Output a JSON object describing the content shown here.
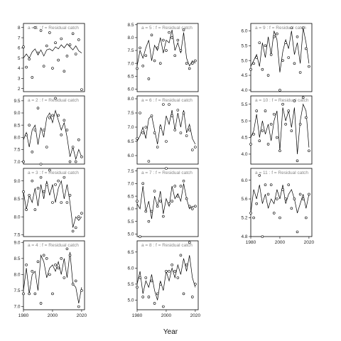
{
  "chart_data": {
    "type": "line",
    "xlabel": "Year",
    "panels": [
      {
        "strip": "a = 1  :  f = Residual catch",
        "xlim": [
          1980,
          2022
        ],
        "ylim": [
          1.7,
          8.4
        ],
        "yticks": [
          2,
          3,
          4,
          5,
          6,
          7,
          8
        ],
        "ytick_labels": [
          "2",
          "3",
          "4",
          "5",
          "6",
          "7",
          "8"
        ],
        "x": [
          1980,
          1982,
          1984,
          1986,
          1988,
          1990,
          1992,
          1994,
          1996,
          1998,
          2000,
          2002,
          2004,
          2006,
          2008,
          2010,
          2012,
          2014,
          2016,
          2018,
          2020
        ],
        "fitted": [
          5.0,
          5.4,
          5.0,
          5.6,
          5.9,
          5.3,
          5.8,
          5.2,
          5.8,
          5.9,
          5.7,
          6.1,
          5.9,
          6.3,
          6.0,
          6.4,
          6.1,
          5.8,
          6.2,
          5.7,
          5.5
        ],
        "observed": [
          6.1,
          4.1,
          4.9,
          3.1,
          8.0,
          5.5,
          7.7,
          4.2,
          6.2,
          7.5,
          4.0,
          6.5,
          4.8,
          6.9,
          3.7,
          5.2,
          6.3,
          7.4,
          5.4,
          6.8,
          1.9
        ]
      },
      {
        "strip": "a = 2  :  f = Residual catch",
        "xlim": [
          1980,
          2022
        ],
        "ylim": [
          6.9,
          9.7
        ],
        "yticks": [
          7.0,
          7.5,
          8.0,
          8.5,
          9.0,
          9.5
        ],
        "ytick_labels": [
          "7.0",
          "7.5",
          "8.0",
          "8.5",
          "9.0",
          "9.5"
        ],
        "x": [
          1980,
          1982,
          1984,
          1986,
          1988,
          1990,
          1992,
          1994,
          1996,
          1998,
          2000,
          2002,
          2004,
          2006,
          2008,
          2010,
          2012,
          2014,
          2016,
          2018,
          2020
        ],
        "fitted": [
          7.9,
          8.2,
          7.6,
          8.3,
          8.5,
          7.7,
          8.4,
          8.0,
          8.8,
          9.0,
          8.6,
          9.1,
          8.7,
          8.3,
          8.6,
          8.0,
          7.2,
          7.6,
          7.1,
          7.5,
          7.2
        ],
        "observed": [
          7.0,
          8.1,
          8.5,
          7.4,
          8.3,
          9.2,
          6.9,
          8.3,
          7.6,
          8.8,
          8.9,
          9.6,
          8.9,
          8.1,
          8.7,
          8.3,
          7.0,
          7.6,
          7.0,
          7.9,
          7.2
        ]
      },
      {
        "strip": "a = 3  :  f = Residual catch",
        "xlim": [
          1980,
          2022
        ],
        "ylim": [
          7.45,
          9.35
        ],
        "yticks": [
          7.5,
          8.0,
          8.5,
          9.0
        ],
        "ytick_labels": [
          "7.5",
          "8.0",
          "8.5",
          "9.0"
        ],
        "x": [
          1980,
          1982,
          1984,
          1986,
          1988,
          1990,
          1992,
          1994,
          1996,
          1998,
          2000,
          2002,
          2004,
          2006,
          2008,
          2010,
          2012,
          2014,
          2016,
          2018,
          2020
        ],
        "fitted": [
          8.7,
          8.2,
          8.6,
          8.4,
          8.8,
          8.3,
          8.9,
          8.5,
          9.0,
          8.6,
          8.9,
          8.4,
          8.8,
          9.0,
          8.5,
          8.9,
          8.4,
          7.7,
          8.0,
          7.9,
          8.0
        ],
        "observed": [
          8.7,
          8.2,
          8.6,
          9.0,
          8.2,
          8.8,
          9.1,
          8.7,
          8.9,
          9.3,
          8.4,
          8.9,
          9.0,
          8.4,
          9.1,
          8.4,
          8.6,
          7.6,
          7.7,
          8.0,
          8.1
        ]
      },
      {
        "strip": "a = 4  :  f = Residual catch",
        "xlim": [
          1980,
          2022
        ],
        "ylim": [
          6.9,
          9.05
        ],
        "yticks": [
          7.0,
          7.5,
          8.0,
          8.5,
          9.0
        ],
        "ytick_labels": [
          "7.0",
          "7.5",
          "8.0",
          "8.5",
          "9.0"
        ],
        "x": [
          1980,
          1982,
          1984,
          1986,
          1988,
          1990,
          1992,
          1994,
          1996,
          1998,
          2000,
          2002,
          2004,
          2006,
          2008,
          2010,
          2012,
          2014,
          2016,
          2018,
          2020
        ],
        "fitted": [
          7.5,
          8.2,
          7.4,
          8.0,
          8.1,
          7.5,
          8.6,
          8.4,
          7.9,
          8.2,
          8.3,
          8.1,
          8.4,
          8.0,
          8.5,
          7.9,
          8.7,
          7.7,
          7.6,
          7.1,
          7.6
        ],
        "observed": [
          7.4,
          8.3,
          7.4,
          8.1,
          7.4,
          8.4,
          7.1,
          8.6,
          8.5,
          8.0,
          7.4,
          8.3,
          8.2,
          8.5,
          7.9,
          8.8,
          8.6,
          7.7,
          7.8,
          7.0,
          7.5
        ]
      },
      {
        "strip": "a = 5  :  f = Residual catch",
        "xlim": [
          1980,
          2022
        ],
        "ylim": [
          5.9,
          8.55
        ],
        "yticks": [
          6.0,
          6.5,
          7.0,
          7.5,
          8.0,
          8.5
        ],
        "ytick_labels": [
          "6.0",
          "6.5",
          "7.0",
          "7.5",
          "8.0",
          "8.5"
        ],
        "x": [
          1980,
          1982,
          1984,
          1986,
          1988,
          1990,
          1992,
          1994,
          1996,
          1998,
          2000,
          2002,
          2004,
          2006,
          2008,
          2010,
          2012,
          2014,
          2016,
          2018,
          2020
        ],
        "fitted": [
          6.9,
          7.5,
          7.2,
          7.6,
          7.9,
          7.1,
          7.7,
          7.5,
          8.0,
          7.4,
          7.9,
          7.8,
          8.3,
          7.5,
          7.8,
          7.4,
          8.2,
          7.2,
          6.9,
          7.1,
          7.0
        ],
        "observed": [
          6.8,
          7.6,
          6.9,
          7.3,
          6.4,
          8.1,
          7.1,
          7.6,
          7.0,
          7.9,
          7.5,
          8.2,
          8.0,
          7.3,
          7.9,
          7.5,
          8.3,
          7.0,
          6.8,
          7.0,
          7.1
        ]
      },
      {
        "strip": "a = 6  :  f = Residual catch",
        "xlim": [
          1980,
          2022
        ],
        "ylim": [
          5.7,
          8.1
        ],
        "yticks": [
          6.0,
          6.5,
          7.0,
          7.5,
          8.0
        ],
        "ytick_labels": [
          "6.0",
          "6.5",
          "7.0",
          "7.5",
          "8.0"
        ],
        "x": [
          1980,
          1982,
          1984,
          1986,
          1988,
          1990,
          1992,
          1994,
          1996,
          1998,
          2000,
          2002,
          2004,
          2006,
          2008,
          2010,
          2012,
          2014,
          2016,
          2018,
          2020
        ],
        "fitted": [
          6.5,
          6.7,
          7.0,
          6.6,
          7.3,
          7.4,
          6.9,
          6.4,
          7.1,
          6.7,
          7.4,
          7.1,
          7.6,
          6.9,
          7.5,
          7.0,
          7.6,
          6.8,
          7.1,
          6.6,
          6.4
        ],
        "observed": [
          6.6,
          7.5,
          6.8,
          7.0,
          5.8,
          7.4,
          6.8,
          6.3,
          7.0,
          7.8,
          6.5,
          7.8,
          7.4,
          6.9,
          7.6,
          6.8,
          7.5,
          6.7,
          6.9,
          6.2,
          6.3
        ]
      },
      {
        "strip": "a = 7  :  f = Residual catch",
        "xlim": [
          1980,
          2022
        ],
        "ylim": [
          4.9,
          7.6
        ],
        "yticks": [
          5.0,
          5.5,
          6.0,
          6.5,
          7.0,
          7.5
        ],
        "ytick_labels": [
          "5.0",
          "5.5",
          "6.0",
          "6.5",
          "7.0",
          "7.5"
        ],
        "x": [
          1980,
          1982,
          1984,
          1986,
          1988,
          1990,
          1992,
          1994,
          1996,
          1998,
          2000,
          2002,
          2004,
          2006,
          2008,
          2010,
          2012,
          2014,
          2016,
          2018,
          2020
        ],
        "fitted": [
          6.2,
          6.0,
          6.9,
          5.9,
          6.3,
          5.6,
          6.5,
          6.1,
          6.7,
          5.8,
          6.4,
          6.1,
          6.9,
          6.4,
          6.6,
          6.3,
          7.0,
          6.4,
          6.0,
          6.1,
          6.1
        ],
        "observed": [
          6.3,
          4.9,
          7.0,
          5.9,
          5.5,
          5.9,
          6.7,
          6.1,
          6.3,
          5.7,
          7.6,
          6.2,
          6.3,
          6.9,
          6.5,
          6.9,
          7.1,
          6.4,
          6.1,
          6.0,
          6.1
        ]
      },
      {
        "strip": "a = 8  :  f = Residual catch",
        "xlim": [
          1980,
          2022
        ],
        "ylim": [
          4.7,
          6.85
        ],
        "yticks": [
          5.0,
          5.5,
          6.0,
          6.5
        ],
        "ytick_labels": [
          "5.0",
          "5.5",
          "6.0",
          "6.5"
        ],
        "x": [
          1980,
          1982,
          1984,
          1986,
          1988,
          1990,
          1992,
          1994,
          1996,
          1998,
          2000,
          2002,
          2004,
          2006,
          2008,
          2010,
          2012,
          2014,
          2016,
          2018,
          2020
        ],
        "fitted": [
          5.5,
          5.9,
          5.2,
          5.6,
          5.4,
          5.8,
          5.3,
          5.0,
          5.6,
          5.3,
          5.9,
          5.6,
          6.0,
          5.7,
          6.1,
          5.8,
          6.3,
          5.9,
          6.4,
          5.7,
          5.4
        ],
        "observed": [
          5.4,
          5.7,
          5.1,
          5.7,
          5.1,
          5.6,
          4.9,
          5.2,
          5.5,
          4.8,
          5.9,
          5.9,
          6.1,
          5.9,
          5.7,
          6.4,
          5.2,
          6.1,
          6.8,
          5.1,
          5.5
        ]
      },
      {
        "strip": "a = 9  :  f = Residual catch",
        "xlim": [
          1980,
          2022
        ],
        "ylim": [
          3.95,
          6.25
        ],
        "yticks": [
          4.0,
          4.5,
          5.0,
          5.5,
          6.0
        ],
        "ytick_labels": [
          "4.0",
          "4.5",
          "5.0",
          "5.5",
          "6.0"
        ],
        "x": [
          1980,
          1982,
          1984,
          1986,
          1988,
          1990,
          1992,
          1994,
          1996,
          1998,
          2000,
          2002,
          2004,
          2006,
          2008,
          2010,
          2012,
          2014,
          2016,
          2018,
          2020
        ],
        "fitted": [
          4.8,
          5.0,
          5.2,
          4.8,
          5.6,
          5.1,
          5.8,
          5.2,
          6.0,
          5.7,
          4.6,
          5.3,
          5.7,
          5.4,
          6.0,
          5.2,
          5.6,
          4.9,
          6.1,
          5.6,
          4.9
        ],
        "observed": [
          4.7,
          4.9,
          5.1,
          5.6,
          4.7,
          5.5,
          4.5,
          5.2,
          5.8,
          5.9,
          4.0,
          5.0,
          5.6,
          5.1,
          6.1,
          4.9,
          5.8,
          4.6,
          6.1,
          5.4,
          4.8
        ]
      },
      {
        "strip": "a = 10  :  f = Residual catch",
        "xlim": [
          1980,
          2022
        ],
        "ylim": [
          3.7,
          5.75
        ],
        "yticks": [
          4.0,
          4.5,
          5.0,
          5.5
        ],
        "ytick_labels": [
          "4.0",
          "4.5",
          "5.0",
          "5.5"
        ],
        "x": [
          1980,
          1982,
          1984,
          1986,
          1988,
          1990,
          1992,
          1994,
          1996,
          1998,
          2000,
          2002,
          2004,
          2006,
          2008,
          2010,
          2012,
          2014,
          2016,
          2018,
          2020
        ],
        "fitted": [
          4.5,
          4.7,
          5.2,
          4.5,
          5.0,
          4.6,
          4.9,
          4.4,
          5.0,
          5.3,
          4.1,
          5.4,
          5.0,
          5.3,
          4.8,
          5.4,
          4.0,
          5.0,
          5.5,
          5.3,
          4.2
        ],
        "observed": [
          4.3,
          4.6,
          5.3,
          4.4,
          4.7,
          5.3,
          4.3,
          4.9,
          5.2,
          4.5,
          4.1,
          5.5,
          4.9,
          5.3,
          4.7,
          5.6,
          3.8,
          4.9,
          5.7,
          5.1,
          4.1
        ]
      },
      {
        "strip": "a = 11  :  f = Residual catch",
        "xlim": [
          1980,
          2022
        ],
        "ylim": [
          4.8,
          6.25
        ],
        "yticks": [
          4.8,
          5.2,
          5.6,
          6.0
        ],
        "ytick_labels": [
          "4.8",
          "5.2",
          "5.6",
          "6.0"
        ],
        "x": [
          1980,
          1982,
          1984,
          1986,
          1988,
          1990,
          1992,
          1994,
          1996,
          1998,
          2000,
          2002,
          2004,
          2006,
          2008,
          2010,
          2012,
          2014,
          2016,
          2018,
          2020
        ],
        "fitted": [
          5.3,
          5.8,
          5.6,
          5.9,
          5.5,
          5.7,
          5.4,
          5.6,
          5.5,
          5.8,
          5.6,
          5.9,
          5.5,
          5.7,
          5.8,
          5.6,
          5.3,
          5.5,
          5.7,
          5.4,
          5.7
        ],
        "observed": [
          5.3,
          5.2,
          5.5,
          6.1,
          4.8,
          5.9,
          5.7,
          5.9,
          5.3,
          5.6,
          5.2,
          5.8,
          5.6,
          5.9,
          5.4,
          5.6,
          4.9,
          5.7,
          5.6,
          5.2,
          5.7
        ]
      }
    ]
  }
}
